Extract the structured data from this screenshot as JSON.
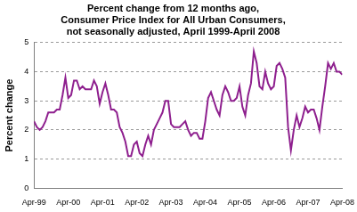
{
  "chart_data": {
    "type": "line",
    "title": [
      "Percent change from 12 months ago,",
      "Consumer Price Index for All Urban Consumers,",
      "not seasonally adjusted, April 1999-April 2008"
    ],
    "y_label": "Percent change",
    "categories": [
      "Apr-99",
      null,
      null,
      null,
      null,
      null,
      null,
      null,
      null,
      null,
      null,
      null,
      "Apr-00",
      null,
      null,
      null,
      null,
      null,
      null,
      null,
      null,
      null,
      null,
      null,
      "Apr-01",
      null,
      null,
      null,
      null,
      null,
      null,
      null,
      null,
      null,
      null,
      null,
      "Apr-02",
      null,
      null,
      null,
      null,
      null,
      null,
      null,
      null,
      null,
      null,
      null,
      "Apr-03",
      null,
      null,
      null,
      null,
      null,
      null,
      null,
      null,
      null,
      null,
      null,
      "Apr-04",
      null,
      null,
      null,
      null,
      null,
      null,
      null,
      null,
      null,
      null,
      null,
      "Apr-05",
      null,
      null,
      null,
      null,
      null,
      null,
      null,
      null,
      null,
      null,
      null,
      "Apr-06",
      null,
      null,
      null,
      null,
      null,
      null,
      null,
      null,
      null,
      null,
      null,
      "Apr-07",
      null,
      null,
      null,
      null,
      null,
      null,
      null,
      null,
      null,
      null,
      null,
      "Apr-08"
    ],
    "values": [
      2.3,
      2.1,
      2.0,
      2.1,
      2.3,
      2.6,
      2.6,
      2.6,
      2.7,
      2.7,
      3.2,
      3.8,
      3.1,
      3.2,
      3.7,
      3.7,
      3.4,
      3.5,
      3.4,
      3.4,
      3.4,
      3.7,
      3.5,
      2.9,
      3.3,
      3.6,
      3.2,
      2.7,
      2.7,
      2.6,
      2.1,
      1.9,
      1.6,
      1.1,
      1.1,
      1.5,
      1.6,
      1.2,
      1.1,
      1.5,
      1.8,
      1.5,
      2.0,
      2.2,
      2.4,
      2.6,
      3.0,
      3.0,
      2.2,
      2.1,
      2.1,
      2.1,
      2.2,
      2.3,
      2.0,
      1.8,
      1.9,
      1.9,
      1.7,
      1.7,
      2.3,
      3.1,
      3.3,
      3.0,
      2.7,
      2.5,
      3.2,
      3.5,
      3.3,
      3.0,
      3.0,
      3.1,
      3.5,
      2.8,
      2.5,
      3.2,
      3.6,
      4.7,
      4.3,
      3.5,
      3.4,
      4.0,
      3.6,
      3.4,
      3.5,
      4.2,
      4.3,
      4.1,
      3.8,
      2.1,
      1.3,
      2.0,
      2.5,
      2.1,
      2.4,
      2.8,
      2.6,
      2.7,
      2.7,
      2.4,
      2.0,
      2.8,
      3.5,
      4.3,
      4.1,
      4.3,
      4.0,
      4.0,
      3.9
    ],
    "color": "#8e1f8e",
    "ylim": [
      0,
      5
    ],
    "yticks": [
      0,
      1,
      2,
      3,
      4,
      5
    ],
    "grid": true
  }
}
